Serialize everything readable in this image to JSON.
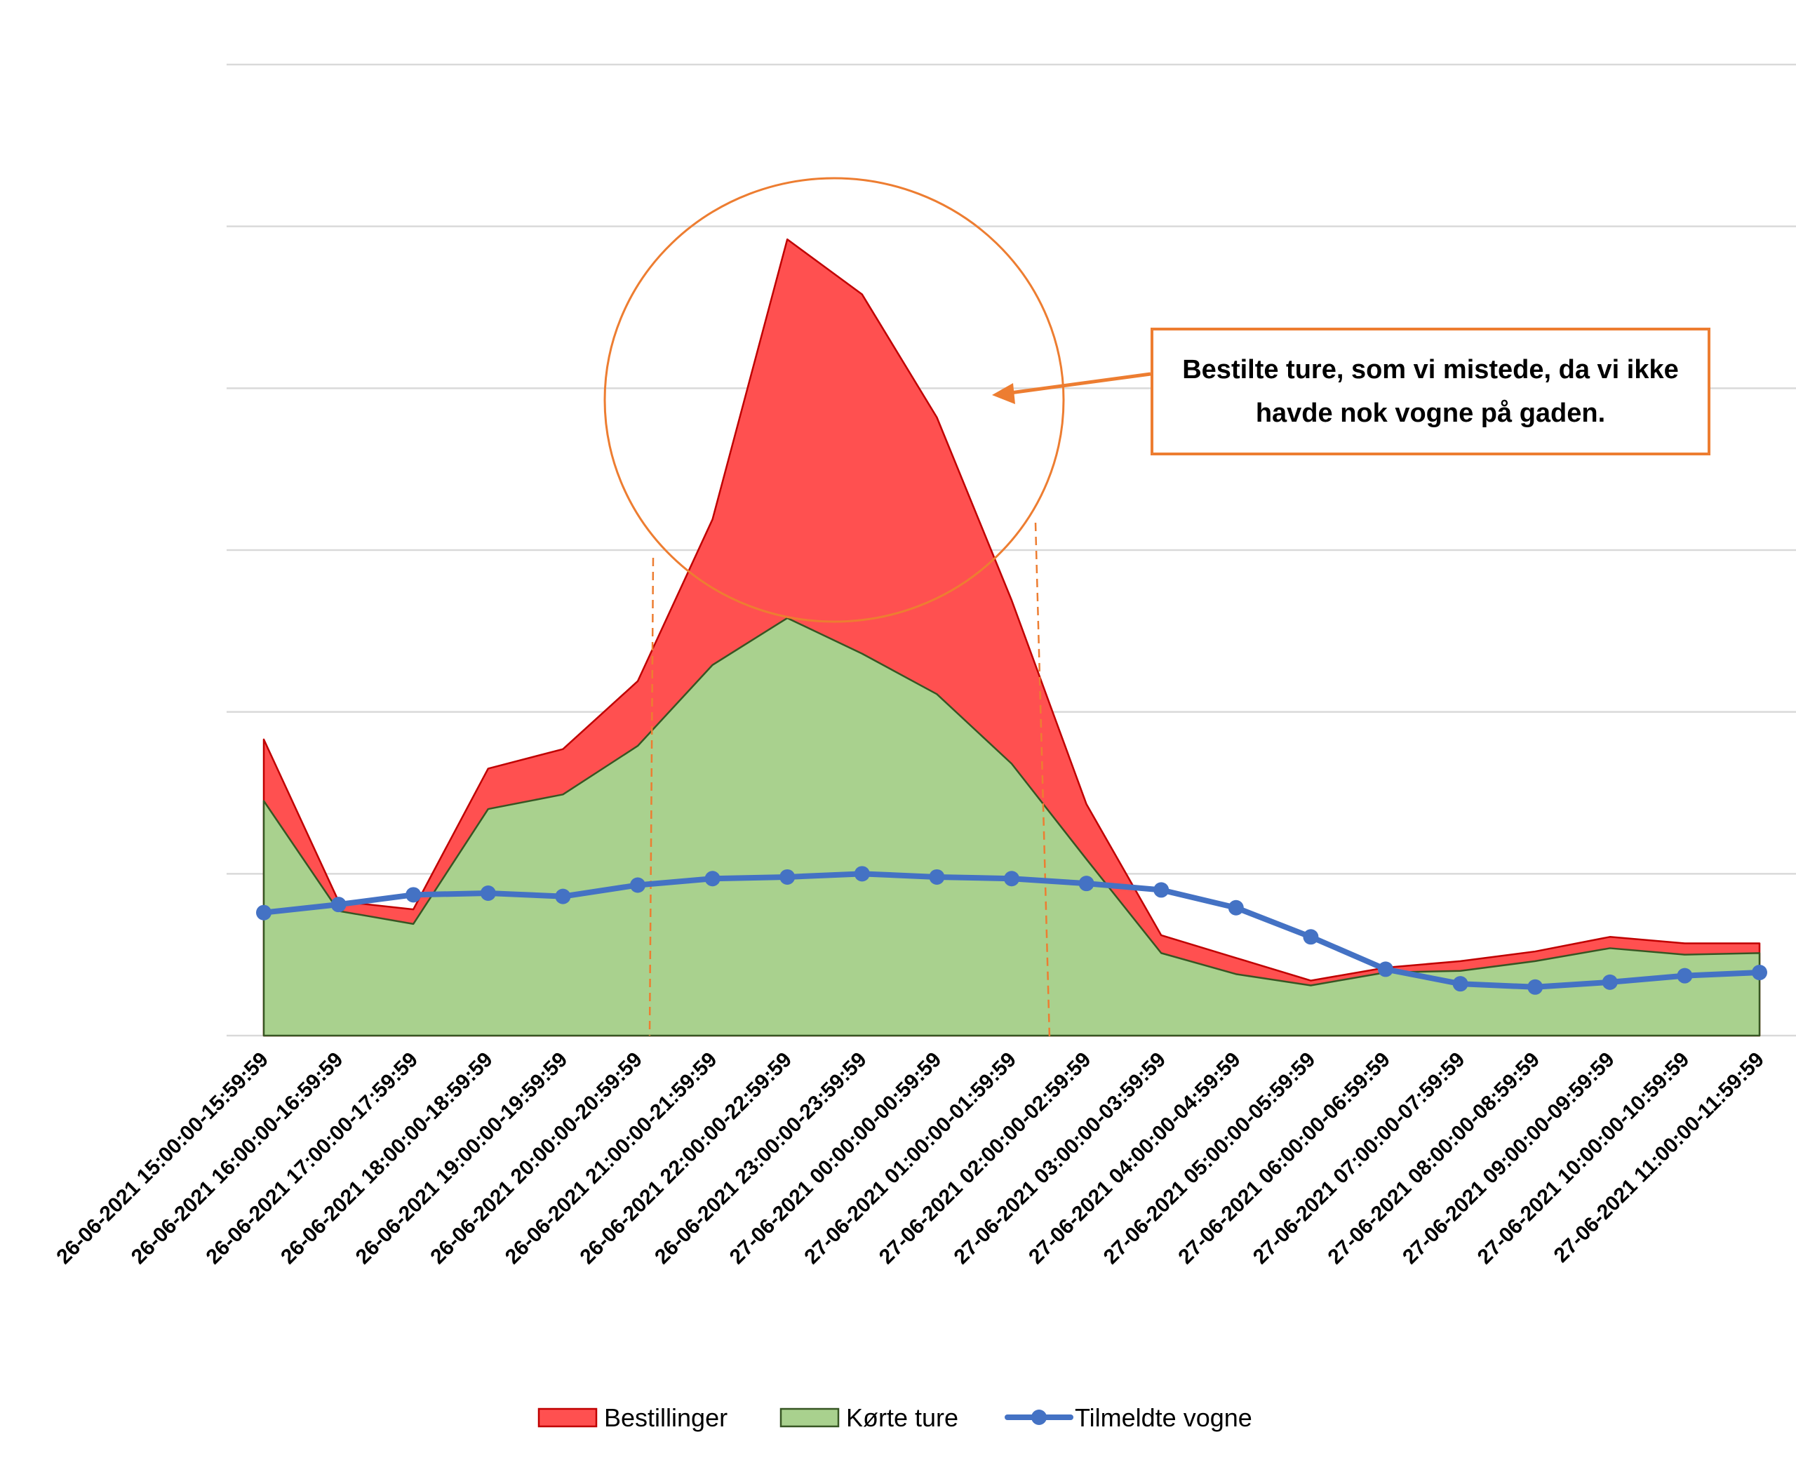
{
  "chart_data": {
    "type": "area",
    "categories": [
      "26-06-2021 15:00:00-15:59:59",
      "26-06-2021 16:00:00-16:59:59",
      "26-06-2021 17:00:00-17:59:59",
      "26-06-2021 18:00:00-18:59:59",
      "26-06-2021 19:00:00-19:59:59",
      "26-06-2021 20:00:00-20:59:59",
      "26-06-2021 21:00:00-21:59:59",
      "26-06-2021 22:00:00-22:59:59",
      "26-06-2021 23:00:00-23:59:59",
      "27-06-2021 00:00:00-00:59:59",
      "27-06-2021 01:00:00-01:59:59",
      "27-06-2021 02:00:00-02:59:59",
      "27-06-2021 03:00:00-03:59:59",
      "27-06-2021 04:00:00-04:59:59",
      "27-06-2021 05:00:00-05:59:59",
      "27-06-2021 06:00:00-06:59:59",
      "27-06-2021 07:00:00-07:59:59",
      "27-06-2021 08:00:00-08:59:59",
      "27-06-2021 09:00:00-09:59:59",
      "27-06-2021 10:00:00-10:59:59",
      "27-06-2021 11:00:00-11:59:59"
    ],
    "ylim": [
      0,
      6
    ],
    "gridlines": 6,
    "y_tick_labels_shown": false,
    "series": [
      {
        "name": "Bestillinger",
        "kind": "area",
        "color": "#FF5050",
        "stroke": "#C00000",
        "values": [
          1.83,
          0.83,
          0.78,
          1.65,
          1.77,
          2.19,
          3.19,
          4.92,
          4.58,
          3.82,
          2.69,
          1.43,
          0.62,
          0.48,
          0.34,
          0.42,
          0.46,
          0.52,
          0.61,
          0.57,
          0.57
        ]
      },
      {
        "name": "Kørte ture",
        "kind": "area",
        "color": "#A9D18E",
        "stroke": "#375623",
        "values": [
          1.45,
          0.77,
          0.69,
          1.4,
          1.49,
          1.79,
          2.29,
          2.58,
          2.36,
          2.11,
          1.68,
          1.09,
          0.51,
          0.38,
          0.31,
          0.39,
          0.4,
          0.46,
          0.54,
          0.5,
          0.51
        ]
      },
      {
        "name": "Tilmeldte vogne",
        "kind": "line",
        "color": "#4472C4",
        "values": [
          0.76,
          0.81,
          0.87,
          0.88,
          0.86,
          0.93,
          0.97,
          0.98,
          1.0,
          0.98,
          0.97,
          0.94,
          0.9,
          0.79,
          0.61,
          0.41,
          0.32,
          0.3,
          0.33,
          0.37,
          0.39
        ]
      }
    ],
    "legend": {
      "placement": "bottom-center"
    },
    "annotation": {
      "text": "Bestilte ture, som vi mistede, da vi ikke havde nok vogne på gaden.",
      "color": "#ED7D31"
    }
  }
}
